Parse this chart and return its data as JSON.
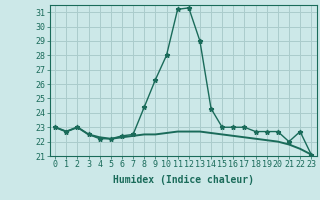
{
  "xlabel": "Humidex (Indice chaleur)",
  "background_color": "#cce8e8",
  "grid_color": "#aacccc",
  "line_color": "#1a6b5a",
  "xlim": [
    -0.5,
    23.5
  ],
  "ylim": [
    21.0,
    31.5
  ],
  "yticks": [
    21,
    22,
    23,
    24,
    25,
    26,
    27,
    28,
    29,
    30,
    31
  ],
  "xticks": [
    0,
    1,
    2,
    3,
    4,
    5,
    6,
    7,
    8,
    9,
    10,
    11,
    12,
    13,
    14,
    15,
    16,
    17,
    18,
    19,
    20,
    21,
    22,
    23
  ],
  "line1_x": [
    0,
    1,
    2,
    3,
    4,
    5,
    6,
    7,
    8,
    9,
    10,
    11,
    12,
    13,
    14,
    15,
    16,
    17,
    18,
    19,
    20,
    21,
    22,
    23
  ],
  "line1_y": [
    23.0,
    22.7,
    23.0,
    22.5,
    22.2,
    22.2,
    22.4,
    22.5,
    24.4,
    26.3,
    28.0,
    31.2,
    31.3,
    29.0,
    24.3,
    23.0,
    23.0,
    23.0,
    22.7,
    22.7,
    22.7,
    22.0,
    22.7,
    21.1
  ],
  "line2_x": [
    0,
    1,
    2,
    3,
    4,
    5,
    6,
    7,
    8,
    9,
    10,
    11,
    12,
    13,
    14,
    15,
    16,
    17,
    18,
    19,
    20,
    21,
    22,
    23
  ],
  "line2_y": [
    23.0,
    22.7,
    23.0,
    22.5,
    22.3,
    22.2,
    22.3,
    22.4,
    22.5,
    22.5,
    22.6,
    22.7,
    22.7,
    22.7,
    22.6,
    22.5,
    22.4,
    22.3,
    22.2,
    22.1,
    22.0,
    21.8,
    21.5,
    21.1
  ],
  "tick_fontsize": 6.0,
  "xlabel_fontsize": 7.0
}
